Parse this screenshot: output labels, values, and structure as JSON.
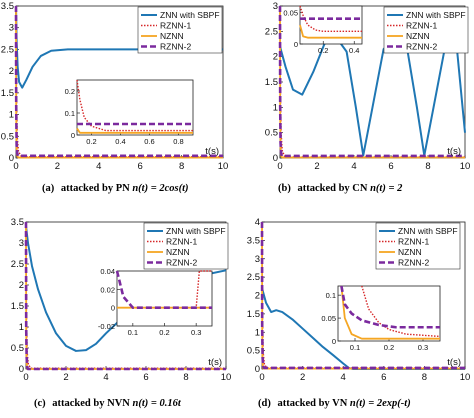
{
  "colors": {
    "znn": "#1f77b4",
    "rznn1": "#d62728",
    "nznn": "#f5a623",
    "rznn2": "#7b2a9e"
  },
  "legend": [
    "ZNN with SBPF",
    "RZNN-1",
    "NZNN",
    "RZNN-2"
  ],
  "chart_data": [
    {
      "type": "line",
      "id": "a",
      "caption_label": "(a)",
      "caption_text": "attacked by PN ",
      "caption_formula": "n(t) = 2cos(t)",
      "xlabel": "t(s)",
      "xlim": [
        0,
        10
      ],
      "ylim": [
        0,
        3.5
      ],
      "xticks": [
        "0",
        "2",
        "4",
        "6",
        "8",
        "10"
      ],
      "yticks": [
        "0",
        "0.5",
        "1",
        "1.5",
        "2",
        "2.5",
        "3",
        "3.5"
      ],
      "legend_placement": "top-right",
      "series": [
        {
          "name": "ZNN with SBPF",
          "x": [
            0,
            0.03,
            0.08,
            0.15,
            0.3,
            0.5,
            0.8,
            1.2,
            1.7,
            2.5,
            4,
            6,
            8,
            10
          ],
          "y": [
            3.5,
            2.7,
            2.1,
            1.75,
            1.62,
            1.8,
            2.1,
            2.35,
            2.47,
            2.5,
            2.5,
            2.5,
            2.5,
            2.5
          ]
        },
        {
          "name": "RZNN-1",
          "x": [
            0,
            0.02,
            0.06,
            0.12,
            0.25,
            0.5,
            10
          ],
          "y": [
            3.5,
            1.6,
            0.5,
            0.15,
            0.04,
            0.03,
            0.03
          ]
        },
        {
          "name": "NZNN",
          "x": [
            0,
            0.01,
            0.03,
            0.06,
            0.12,
            10
          ],
          "y": [
            3.5,
            1.0,
            0.2,
            0.04,
            0.01,
            0.01
          ]
        },
        {
          "name": "RZNN-2",
          "x": [
            0,
            0.01,
            0.03,
            0.06,
            0.1,
            10
          ],
          "y": [
            3.5,
            1.2,
            0.3,
            0.1,
            0.05,
            0.05
          ]
        }
      ],
      "inset": {
        "xlim": [
          0.1,
          0.9
        ],
        "ylim": [
          0,
          0.25
        ],
        "xticks": [
          "0.2",
          "0.4",
          "0.6",
          "0.8"
        ],
        "yticks": [
          "0",
          "0.1",
          "0.2"
        ],
        "series": [
          {
            "x": [
              0.1,
              0.12,
              0.15,
              0.2,
              0.3,
              0.9
            ],
            "y": [
              0.25,
              0.16,
              0.08,
              0.04,
              0.02,
              0.02
            ]
          },
          {
            "x": [
              0.1,
              0.12,
              0.15,
              0.9
            ],
            "y": [
              0.03,
              0.01,
              0.01,
              0.01
            ]
          },
          {
            "x": [
              0.1,
              0.9
            ],
            "y": [
              0.05,
              0.05
            ]
          }
        ]
      }
    },
    {
      "type": "line",
      "id": "b",
      "caption_label": "(b)",
      "caption_text": "attacked by CN ",
      "caption_formula": "n(t) = 2",
      "xlabel": "t(s)",
      "xlim": [
        0,
        10
      ],
      "ylim": [
        0,
        3
      ],
      "xticks": [
        "0",
        "2",
        "4",
        "6",
        "8",
        "10"
      ],
      "yticks": [
        "0",
        "0.5",
        "1",
        "1.5",
        "2",
        "2.5",
        "3"
      ],
      "legend_placement": "top-right",
      "series": [
        {
          "name": "ZNN with SBPF",
          "x": [
            0,
            0.3,
            0.7,
            1.2,
            1.8,
            2.4,
            3.0,
            3.6,
            4.1,
            4.5,
            5.0,
            5.6,
            6.3,
            6.9,
            7.4,
            7.8,
            8.3,
            8.9,
            9.5,
            10
          ],
          "y": [
            2.2,
            1.8,
            1.35,
            1.25,
            1.7,
            2.25,
            2.4,
            2.1,
            1.0,
            0.05,
            1.0,
            2.15,
            2.4,
            2.1,
            1.0,
            0.05,
            1.0,
            2.15,
            2.4,
            0.5
          ]
        },
        {
          "name": "RZNN-1",
          "x": [
            0,
            0.02,
            0.06,
            0.12,
            0.25,
            0.5,
            10
          ],
          "y": [
            3.0,
            1.4,
            0.5,
            0.15,
            0.03,
            0.02,
            0.02
          ]
        },
        {
          "name": "NZNN",
          "x": [
            0,
            0.01,
            0.03,
            0.06,
            0.12,
            10
          ],
          "y": [
            3.0,
            0.9,
            0.2,
            0.04,
            0.01,
            0.01
          ]
        },
        {
          "name": "RZNN-2",
          "x": [
            0,
            0.01,
            0.03,
            0.06,
            0.1,
            10
          ],
          "y": [
            3.0,
            1.0,
            0.3,
            0.1,
            0.04,
            0.04
          ]
        }
      ],
      "inset": {
        "xlim": [
          0.05,
          0.45
        ],
        "ylim": [
          0,
          0.06
        ],
        "xticks": [
          "0.2",
          "0.4"
        ],
        "yticks": [
          "0",
          "0.05"
        ],
        "series": [
          {
            "x": [
              0.05,
              0.07,
              0.1,
              0.15,
              0.2,
              0.45
            ],
            "y": [
              0.06,
              0.045,
              0.03,
              0.022,
              0.02,
              0.02
            ]
          },
          {
            "x": [
              0.05,
              0.07,
              0.1,
              0.45
            ],
            "y": [
              0.03,
              0.012,
              0.01,
              0.01
            ]
          },
          {
            "x": [
              0.05,
              0.45
            ],
            "y": [
              0.04,
              0.04
            ]
          }
        ]
      }
    },
    {
      "type": "line",
      "id": "c",
      "caption_label": "(c)",
      "caption_text": "attacked by NVN ",
      "caption_formula": "n(t) = 0.16t",
      "xlabel": "t(s)",
      "xlim": [
        0,
        10
      ],
      "ylim": [
        0,
        3.5
      ],
      "xticks": [
        "0",
        "2",
        "4",
        "6",
        "8",
        "10"
      ],
      "yticks": [
        "0",
        "0.5",
        "1",
        "1.5",
        "2",
        "2.5",
        "3",
        "3.5"
      ],
      "legend_placement": "top-right",
      "series": [
        {
          "name": "ZNN with SBPF",
          "x": [
            0,
            0.1,
            0.3,
            0.6,
            1.0,
            1.5,
            2.0,
            2.5,
            3.0,
            3.5,
            4.0,
            5.0,
            6.0,
            7.0,
            8.0,
            9.0,
            10
          ],
          "y": [
            3.4,
            3.0,
            2.45,
            1.9,
            1.35,
            0.85,
            0.55,
            0.43,
            0.45,
            0.6,
            0.85,
            1.3,
            1.7,
            2.0,
            2.15,
            2.25,
            2.35
          ]
        },
        {
          "name": "RZNN-1",
          "x": [
            0,
            0.02,
            0.06,
            0.12,
            0.25,
            10
          ],
          "y": [
            3.5,
            1.4,
            0.4,
            0.1,
            0.02,
            0.02
          ]
        },
        {
          "name": "NZNN",
          "x": [
            0,
            0.01,
            0.03,
            0.06,
            10
          ],
          "y": [
            3.5,
            0.9,
            0.15,
            0.0,
            0.0
          ]
        },
        {
          "name": "RZNN-2",
          "x": [
            0,
            0.01,
            0.03,
            0.06,
            0.1,
            10
          ],
          "y": [
            3.5,
            1.0,
            0.3,
            0.05,
            0.0,
            0.0
          ]
        }
      ],
      "inset": {
        "xlim": [
          0.05,
          0.35
        ],
        "ylim": [
          -0.02,
          0.04
        ],
        "xticks": [
          "0.1",
          "0.2",
          "0.3"
        ],
        "yticks": [
          "-0.02",
          "0",
          "0.02",
          "0.04"
        ],
        "series": [
          {
            "x": [
              0.05,
              0.28,
              0.3,
              0.31,
              0.35
            ],
            "y": [
              0.0,
              0.0,
              0.0,
              0.04,
              0.04
            ]
          },
          {
            "x": [
              0.05,
              0.35
            ],
            "y": [
              0.0,
              0.0
            ]
          },
          {
            "x": [
              0.05,
              0.07,
              0.1,
              0.35
            ],
            "y": [
              0.04,
              0.012,
              0.0,
              0.0
            ]
          }
        ]
      }
    },
    {
      "type": "line",
      "id": "d",
      "caption_label": "(d)",
      "caption_text": "attacked by VN ",
      "caption_formula": "n(t) = 2exp(-t)",
      "xlabel": "t(s)",
      "xlim": [
        0,
        10
      ],
      "ylim": [
        0,
        4
      ],
      "xticks": [
        "0",
        "2",
        "4",
        "6",
        "8",
        "10"
      ],
      "yticks": [
        "0",
        "0.5",
        "1",
        "1.5",
        "2",
        "2.5",
        "3",
        "3.5",
        "4"
      ],
      "legend_placement": "top-right",
      "series": [
        {
          "name": "ZNN with SBPF",
          "x": [
            0,
            0.2,
            0.45,
            0.7,
            1.0,
            1.5,
            2.0,
            2.5,
            3.0,
            3.5,
            4.0,
            4.3,
            4.5,
            10
          ],
          "y": [
            2.2,
            1.8,
            1.55,
            1.6,
            1.55,
            1.35,
            1.1,
            0.85,
            0.6,
            0.38,
            0.15,
            0.02,
            0.0,
            0.0
          ]
        },
        {
          "name": "RZNN-1",
          "x": [
            0,
            0.02,
            0.06,
            0.12,
            0.25,
            10
          ],
          "y": [
            4.0,
            1.6,
            0.45,
            0.12,
            0.03,
            0.03
          ]
        },
        {
          "name": "NZNN",
          "x": [
            0,
            0.01,
            0.03,
            0.06,
            10
          ],
          "y": [
            4.0,
            1.0,
            0.15,
            0.01,
            0.01
          ]
        },
        {
          "name": "RZNN-2",
          "x": [
            0,
            0.01,
            0.03,
            0.06,
            0.1,
            10
          ],
          "y": [
            4.0,
            1.1,
            0.3,
            0.08,
            0.03,
            0.03
          ]
        }
      ],
      "inset": {
        "xlim": [
          0.05,
          0.35
        ],
        "ylim": [
          0,
          0.12
        ],
        "xticks": [
          "0.1",
          "0.2",
          "0.3"
        ],
        "yticks": [
          "0",
          "0.05",
          "0.1"
        ],
        "series": [
          {
            "x": [
              0.12,
              0.14,
              0.17,
              0.2,
              0.25,
              0.35
            ],
            "y": [
              0.12,
              0.07,
              0.04,
              0.025,
              0.015,
              0.01
            ]
          },
          {
            "x": [
              0.06,
              0.07,
              0.09,
              0.12,
              0.35
            ],
            "y": [
              0.12,
              0.05,
              0.015,
              0.005,
              0.005
            ]
          },
          {
            "x": [
              0.06,
              0.07,
              0.09,
              0.12,
              0.17,
              0.22,
              0.35
            ],
            "y": [
              0.12,
              0.08,
              0.06,
              0.045,
              0.035,
              0.03,
              0.03
            ]
          }
        ]
      }
    }
  ]
}
